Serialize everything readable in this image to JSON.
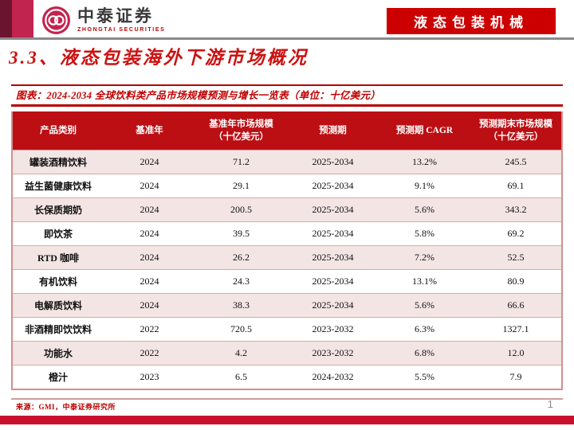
{
  "brand": {
    "logo_cn": "中泰证券",
    "logo_en": "ZHONGTAI SECURITIES",
    "tag": "液态包装机械"
  },
  "page": {
    "section_title": "3.3、液态包装海外下游市场概况",
    "caption": "图表：2024-2034 全球饮料类产品市场规模预测与增长一览表（单位：十亿美元）",
    "source": "来源：GMI，中泰证券研究所",
    "page_number": "1"
  },
  "table": {
    "headers": [
      "产品类别",
      "基准年",
      "基准年市场规模（十亿美元）",
      "预测期",
      "预测期 CAGR",
      "预测期末市场规模（十亿美元）"
    ],
    "rows": [
      [
        "罐装酒精饮料",
        "2024",
        "71.2",
        "2025-2034",
        "13.2%",
        "245.5"
      ],
      [
        "益生菌健康饮料",
        "2024",
        "29.1",
        "2025-2034",
        "9.1%",
        "69.1"
      ],
      [
        "长保质期奶",
        "2024",
        "200.5",
        "2025-2034",
        "5.6%",
        "343.2"
      ],
      [
        "即饮茶",
        "2024",
        "39.5",
        "2025-2034",
        "5.8%",
        "69.2"
      ],
      [
        "RTD 咖啡",
        "2024",
        "26.2",
        "2025-2034",
        "7.2%",
        "52.5"
      ],
      [
        "有机饮料",
        "2024",
        "24.3",
        "2025-2034",
        "13.1%",
        "80.9"
      ],
      [
        "电解质饮料",
        "2024",
        "38.3",
        "2025-2034",
        "5.6%",
        "66.6"
      ],
      [
        "非酒精即饮饮料",
        "2022",
        "720.5",
        "2023-2032",
        "6.3%",
        "1327.1"
      ],
      [
        "功能水",
        "2022",
        "4.2",
        "2023-2032",
        "6.8%",
        "12.0"
      ],
      [
        "橙汁",
        "2023",
        "6.5",
        "2024-2032",
        "5.5%",
        "7.9"
      ]
    ]
  },
  "chart_data": {
    "type": "table",
    "title": "2024-2034 全球饮料类产品市场规模预测与增长一览表（单位：十亿美元）",
    "columns": [
      "产品类别",
      "基准年",
      "基准年市场规模（十亿美元）",
      "预测期",
      "预测期 CAGR",
      "预测期末市场规模（十亿美元）"
    ],
    "rows": [
      {
        "category": "罐装酒精饮料",
        "base_year": 2024,
        "base_size": 71.2,
        "period": "2025-2034",
        "cagr_pct": 13.2,
        "end_size": 245.5
      },
      {
        "category": "益生菌健康饮料",
        "base_year": 2024,
        "base_size": 29.1,
        "period": "2025-2034",
        "cagr_pct": 9.1,
        "end_size": 69.1
      },
      {
        "category": "长保质期奶",
        "base_year": 2024,
        "base_size": 200.5,
        "period": "2025-2034",
        "cagr_pct": 5.6,
        "end_size": 343.2
      },
      {
        "category": "即饮茶",
        "base_year": 2024,
        "base_size": 39.5,
        "period": "2025-2034",
        "cagr_pct": 5.8,
        "end_size": 69.2
      },
      {
        "category": "RTD 咖啡",
        "base_year": 2024,
        "base_size": 26.2,
        "period": "2025-2034",
        "cagr_pct": 7.2,
        "end_size": 52.5
      },
      {
        "category": "有机饮料",
        "base_year": 2024,
        "base_size": 24.3,
        "period": "2025-2034",
        "cagr_pct": 13.1,
        "end_size": 80.9
      },
      {
        "category": "电解质饮料",
        "base_year": 2024,
        "base_size": 38.3,
        "period": "2025-2034",
        "cagr_pct": 5.6,
        "end_size": 66.6
      },
      {
        "category": "非酒精即饮饮料",
        "base_year": 2022,
        "base_size": 720.5,
        "period": "2023-2032",
        "cagr_pct": 6.3,
        "end_size": 1327.1
      },
      {
        "category": "功能水",
        "base_year": 2022,
        "base_size": 4.2,
        "period": "2023-2032",
        "cagr_pct": 6.8,
        "end_size": 12.0
      },
      {
        "category": "橙汁",
        "base_year": 2023,
        "base_size": 6.5,
        "period": "2024-2032",
        "cagr_pct": 5.5,
        "end_size": 7.9
      }
    ]
  },
  "colors": {
    "header_red": "#BB0F14",
    "tag_red": "#CC0000",
    "accent_red": "#C00000",
    "row_pink": "#F3E5E4",
    "row_border": "#D9A8A6",
    "bar_dark": "#6B1430",
    "bar_crimson": "#C22450",
    "bottom_band": "#C8102E",
    "gray_rule": "#8A8A8A"
  }
}
